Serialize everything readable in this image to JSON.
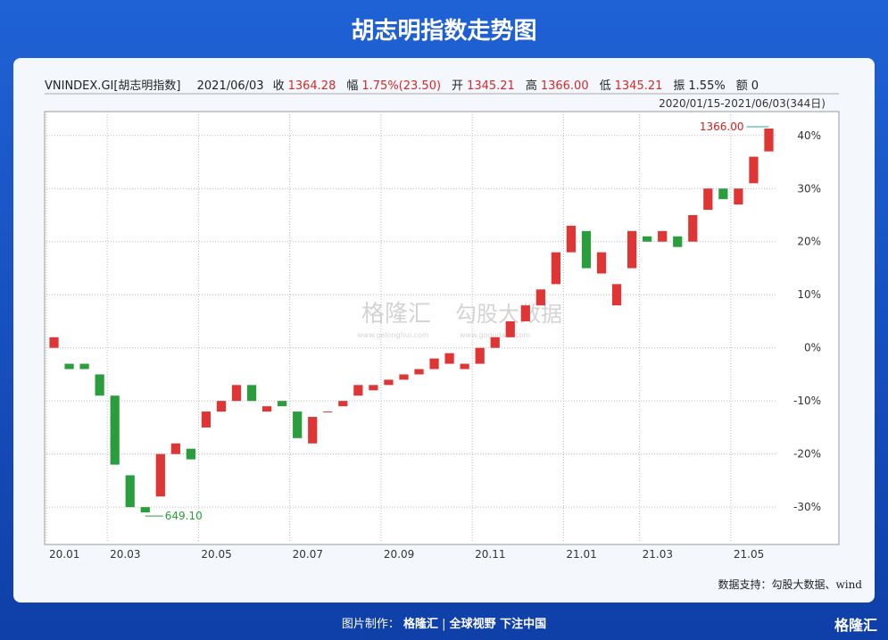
{
  "header": {
    "title": "胡志明指数走势图"
  },
  "info": {
    "name": "VNINDEX.GI[胡志明指数]",
    "date": "2021/06/03",
    "fields": [
      {
        "label": "收",
        "value": "1364.28"
      },
      {
        "label": "幅",
        "value": "1.75%(23.50)"
      },
      {
        "label": "开",
        "value": "1345.21"
      },
      {
        "label": "高",
        "value": "1366.00"
      },
      {
        "label": "低",
        "value": "1345.21"
      },
      {
        "label": "振",
        "value": "1.55%"
      },
      {
        "label": "额",
        "value": "0"
      }
    ],
    "range": "2020/01/15-2021/06/03(344日)"
  },
  "chart_data": {
    "type": "candlestick",
    "up_color": "#e03535",
    "down_color": "#2a9d3c",
    "categories": [
      "20.01",
      null,
      null,
      null,
      "20.03",
      null,
      null,
      null,
      null,
      null,
      "20.05",
      null,
      null,
      null,
      null,
      null,
      "20.07",
      null,
      null,
      null,
      null,
      null,
      "20.09",
      null,
      null,
      null,
      null,
      null,
      "20.11",
      null,
      null,
      null,
      null,
      null,
      "21.01",
      null,
      null,
      null,
      null,
      "21.03",
      null,
      null,
      null,
      null,
      null,
      "21.05",
      null,
      null
    ],
    "open": [
      0,
      -3,
      -3,
      -5,
      -9,
      -24,
      -30,
      -28,
      -20,
      -19,
      -15,
      -12,
      -10,
      -7,
      -12,
      -10,
      -12,
      -18,
      -12,
      -11,
      -9,
      -8,
      -7,
      -6,
      -5,
      -4,
      -3,
      -4,
      -3,
      0,
      2,
      5,
      8,
      12,
      18,
      22,
      14,
      8,
      15,
      21,
      20,
      21,
      20,
      26,
      30,
      27,
      31,
      37
    ],
    "close": [
      2,
      -4,
      -4,
      -9,
      -22,
      -30,
      -31,
      -20,
      -18,
      -21,
      -12,
      -10,
      -7,
      -10,
      -11,
      -11,
      -17,
      -13,
      -12,
      -10,
      -7,
      -7,
      -6,
      -5,
      -4,
      -2,
      -1,
      -3,
      0,
      2,
      5,
      8,
      11,
      18,
      23,
      15,
      18,
      12,
      22,
      20,
      22,
      19,
      25,
      30,
      28,
      30,
      36,
      41.3
    ],
    "ylim": [
      -36.7,
      44.5
    ],
    "yticks": [
      {
        "value": 40,
        "label": "40%"
      },
      {
        "value": 30,
        "label": "30%"
      },
      {
        "value": 20,
        "label": "20%"
      },
      {
        "value": 10,
        "label": "10%"
      },
      {
        "value": 0,
        "label": "0%"
      },
      {
        "value": -10,
        "label": "-10%"
      },
      {
        "value": -20,
        "label": "-20%"
      },
      {
        "value": -30,
        "label": "-30%"
      }
    ],
    "grid": true,
    "max_label": "1366.00",
    "min_label": "649.10"
  },
  "source": "数据支持：勾股大数据、wind",
  "watermark": {
    "left": "格隆汇",
    "left_url": "www.gelonghui.com",
    "right": "勾股大数据",
    "right_url": "www.gogudata.com"
  },
  "footer": {
    "maker": "图片制作：",
    "brand": "格隆汇",
    "slogan": "全球视野 下注中国",
    "corner": "格隆汇"
  }
}
